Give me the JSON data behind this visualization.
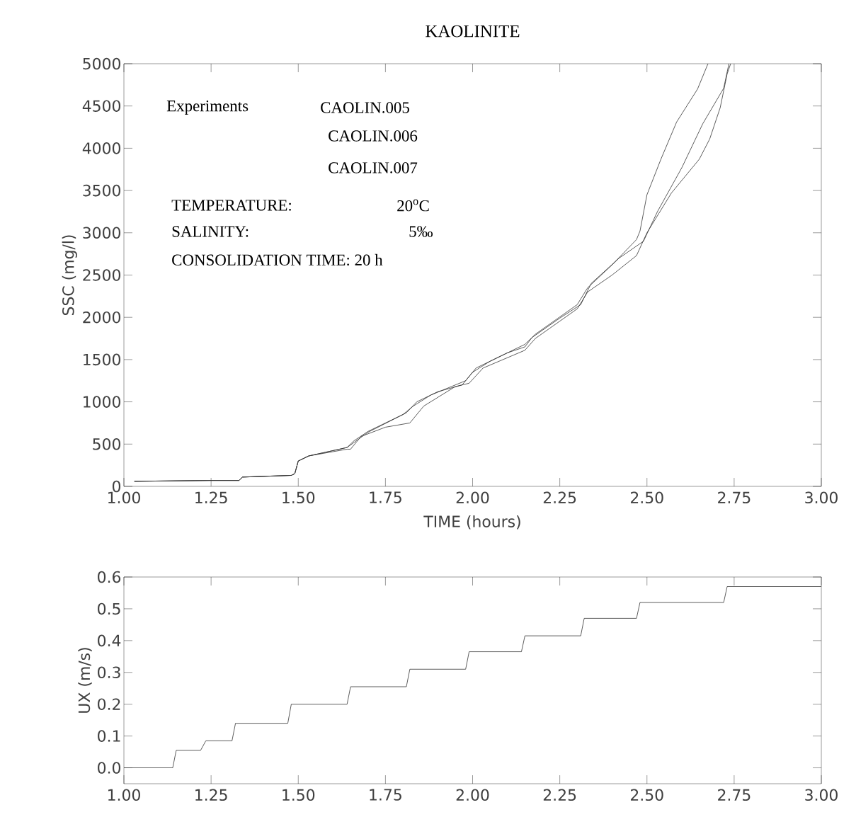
{
  "chart_data": [
    {
      "type": "line",
      "title": "KAOLINITE",
      "xlabel": "TIME (hours)",
      "ylabel": "SSC (mg/l)",
      "annotations": [
        "Experiments",
        "CAOLIN.005",
        "CAOLIN.006",
        "CAOLIN.007",
        "TEMPERATURE:",
        "20$^{o}$C",
        "SALINITY:",
        "5‰",
        "CONSOLIDATION TIME: 20 h"
      ],
      "xlim": [
        1,
        3
      ],
      "ylim": [
        0,
        5000
      ],
      "xticks": [
        {
          "value": 1,
          "label": "1.00"
        },
        {
          "value": 1.25,
          "label": "1.25"
        },
        {
          "value": 1.5,
          "label": "1.50"
        },
        {
          "value": 1.75,
          "label": "1.75"
        },
        {
          "value": 2,
          "label": "2.00"
        },
        {
          "value": 2.25,
          "label": "2.25"
        },
        {
          "value": 2.5,
          "label": "2.50"
        },
        {
          "value": 2.75,
          "label": "2.75"
        },
        {
          "value": 3,
          "label": "3.00"
        }
      ],
      "yticks": [
        0,
        500,
        1000,
        1500,
        2000,
        2500,
        3000,
        3500,
        4000,
        4500,
        5000
      ],
      "series": [
        {
          "color": "#333333",
          "x": [
            1.03,
            1.25,
            1.33,
            1.34,
            1.48,
            1.49,
            1.5,
            1.53,
            1.64,
            1.66,
            1.7,
            1.8,
            1.83,
            1.88,
            1.98,
            2.0,
            2.05,
            2.15,
            2.18,
            2.3,
            2.33,
            2.4,
            2.47,
            2.48,
            2.5,
            2.54,
            2.585,
            2.645,
            2.675
          ],
          "values": [
            60,
            70,
            70,
            110,
            130,
            150,
            300,
            360,
            460,
            540,
            650,
            850,
            950,
            1080,
            1250,
            1350,
            1480,
            1680,
            1800,
            2150,
            2350,
            2620,
            2920,
            3020,
            3450,
            3870,
            4310,
            4700,
            5000
          ]
        },
        {
          "color": "#333333",
          "x": [
            1.03,
            1.25,
            1.33,
            1.34,
            1.48,
            1.49,
            1.5,
            1.53,
            1.64,
            1.66,
            1.7,
            1.81,
            1.84,
            1.9,
            1.97,
            2.01,
            2.1,
            2.15,
            2.17,
            2.25,
            2.31,
            2.34,
            2.42,
            2.49,
            2.53,
            2.6,
            2.66,
            2.72,
            2.735
          ],
          "values": [
            60,
            70,
            70,
            110,
            130,
            150,
            300,
            360,
            460,
            520,
            640,
            870,
            1000,
            1120,
            1200,
            1400,
            1580,
            1650,
            1760,
            1990,
            2150,
            2400,
            2700,
            2900,
            3250,
            3770,
            4290,
            4710,
            5000
          ]
        },
        {
          "color": "#333333",
          "x": [
            1.03,
            1.25,
            1.33,
            1.34,
            1.48,
            1.49,
            1.5,
            1.53,
            1.64,
            1.65,
            1.68,
            1.75,
            1.82,
            1.86,
            1.95,
            1.99,
            2.03,
            2.15,
            2.18,
            2.3,
            2.33,
            2.4,
            2.47,
            2.5,
            2.57,
            2.65,
            2.68,
            2.71,
            2.73,
            2.74
          ],
          "values": [
            60,
            70,
            70,
            110,
            130,
            150,
            300,
            360,
            440,
            440,
            590,
            700,
            750,
            950,
            1180,
            1220,
            1400,
            1610,
            1750,
            2100,
            2300,
            2500,
            2730,
            3000,
            3470,
            3870,
            4110,
            4480,
            4880,
            5000
          ]
        }
      ]
    },
    {
      "type": "line",
      "ylabel": "UX (m/s)",
      "xlim": [
        1,
        3
      ],
      "ylim": [
        -0.05,
        0.6
      ],
      "xticks": [
        {
          "value": 1,
          "label": "1.00"
        },
        {
          "value": 1.25,
          "label": "1.25"
        },
        {
          "value": 1.5,
          "label": "1.50"
        },
        {
          "value": 1.75,
          "label": "1.75"
        },
        {
          "value": 2,
          "label": "2.00"
        },
        {
          "value": 2.25,
          "label": "2.25"
        },
        {
          "value": 2.5,
          "label": "2.50"
        },
        {
          "value": 2.75,
          "label": "2.75"
        },
        {
          "value": 3,
          "label": "3.00"
        }
      ],
      "yticks": [
        {
          "value": 0,
          "label": "0.0"
        },
        {
          "value": 0.1,
          "label": "0.1"
        },
        {
          "value": 0.2,
          "label": "0.2"
        },
        {
          "value": 0.3,
          "label": "0.3"
        },
        {
          "value": 0.4,
          "label": "0.4"
        },
        {
          "value": 0.5,
          "label": "0.5"
        },
        {
          "value": 0.6,
          "label": "0.6"
        }
      ],
      "series": [
        {
          "color": "#333333",
          "x": [
            1.0,
            1.14,
            1.15,
            1.22,
            1.235,
            1.31,
            1.32,
            1.47,
            1.48,
            1.64,
            1.65,
            1.81,
            1.82,
            1.98,
            1.99,
            2.14,
            2.15,
            2.31,
            2.32,
            2.47,
            2.48,
            2.72,
            2.73,
            3.0
          ],
          "values": [
            0,
            0,
            0.055,
            0.055,
            0.085,
            0.085,
            0.14,
            0.14,
            0.2,
            0.2,
            0.255,
            0.255,
            0.31,
            0.31,
            0.365,
            0.365,
            0.415,
            0.415,
            0.47,
            0.47,
            0.52,
            0.52,
            0.57,
            0.57
          ]
        }
      ]
    }
  ]
}
